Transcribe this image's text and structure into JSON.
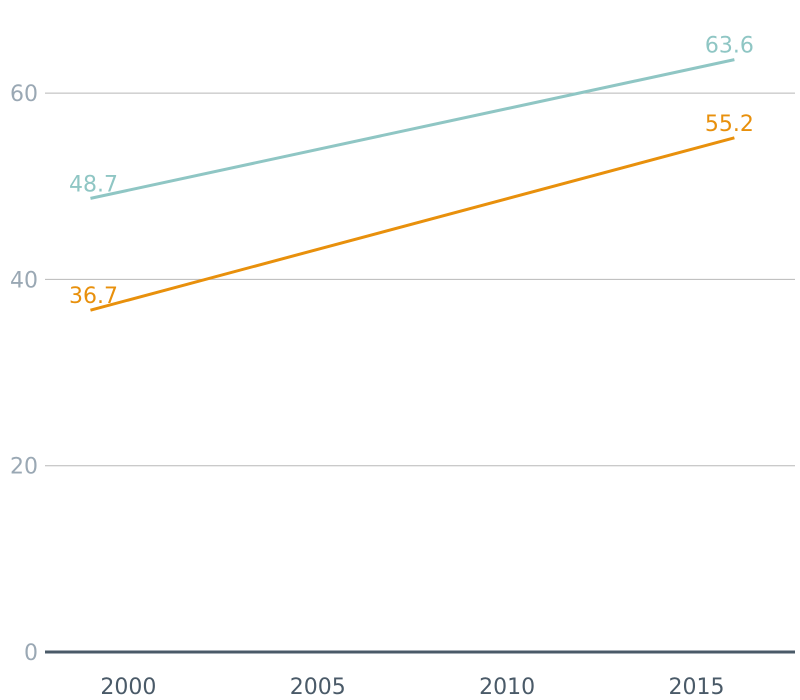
{
  "chart_data": {
    "type": "line",
    "title": "",
    "xlabel": "",
    "ylabel": "",
    "x": [
      1999,
      2016
    ],
    "xlim": [
      1997.8,
      2017.6
    ],
    "ylim": [
      0,
      70
    ],
    "xticks": [
      2000,
      2005,
      2010,
      2015
    ],
    "yticks": [
      0,
      20,
      40,
      60
    ],
    "xtick_labels": [
      "2000",
      "2005",
      "2010",
      "2015"
    ],
    "ytick_labels": [
      "0",
      "20",
      "40",
      "60"
    ],
    "grid": true,
    "legend": "none",
    "series": [
      {
        "color": "#8fc6c4",
        "values": [
          48.7,
          63.6
        ],
        "start_label": "48.7",
        "end_label": "63.6"
      },
      {
        "color": "#e8900c",
        "values": [
          36.7,
          55.2
        ],
        "start_label": "36.7",
        "end_label": "55.2"
      }
    ]
  }
}
